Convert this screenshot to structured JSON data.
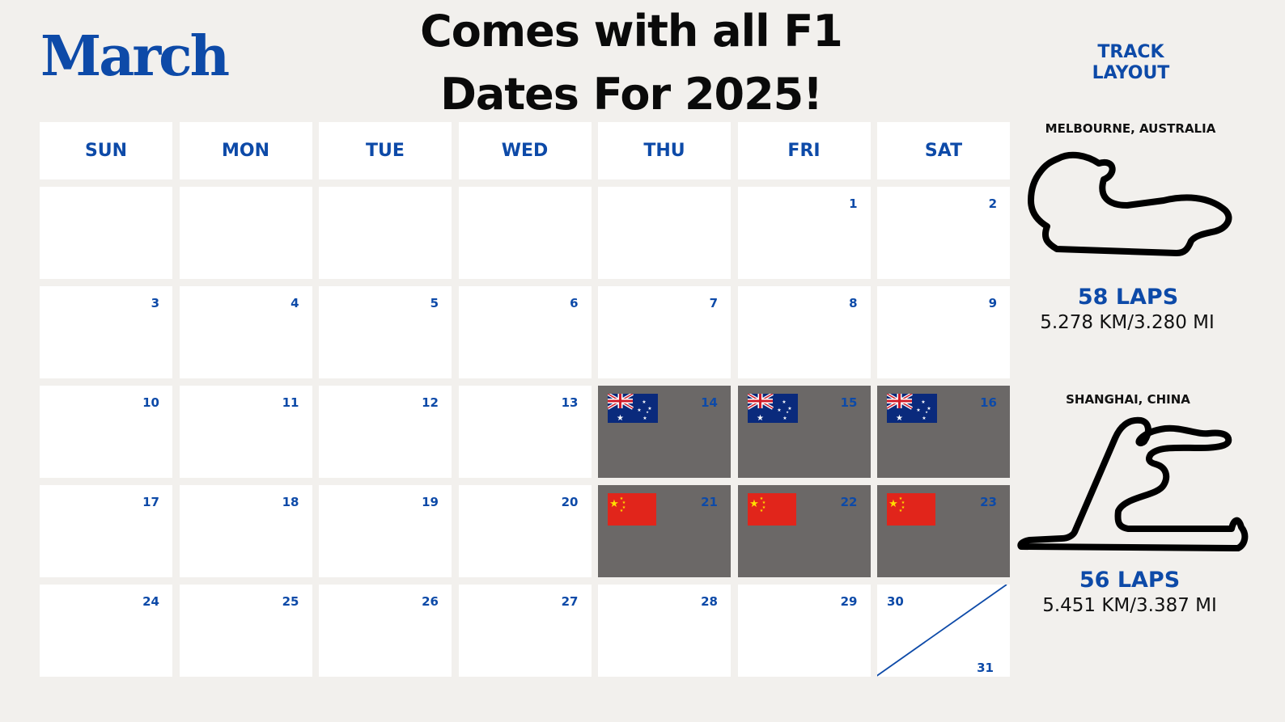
{
  "month": "March",
  "headline": {
    "line1": "Comes with all F1",
    "line2": "Dates For 2025!"
  },
  "weekdays": [
    "SUN",
    "MON",
    "TUE",
    "WED",
    "THU",
    "FRI",
    "SAT"
  ],
  "weeks": [
    [
      null,
      null,
      null,
      null,
      null,
      "1",
      "2"
    ],
    [
      "3",
      "4",
      "5",
      "6",
      "7",
      "8",
      "9"
    ],
    [
      "10",
      "11",
      "12",
      "13",
      "14",
      "15",
      "16"
    ],
    [
      "17",
      "18",
      "19",
      "20",
      "21",
      "22",
      "23"
    ],
    [
      "24",
      "25",
      "26",
      "27",
      "28",
      "29",
      "30"
    ]
  ],
  "last_cell_extra_day": "31",
  "race_weekends": [
    {
      "days": [
        "14",
        "15",
        "16"
      ],
      "flag": "australia-flag"
    },
    {
      "days": [
        "21",
        "22",
        "23"
      ],
      "flag": "china-flag"
    }
  ],
  "colors": {
    "accent": "#0d4aa8",
    "race_cell": "#6b6867",
    "background": "#f2f0ed"
  },
  "sidebar": {
    "title_line1": "TRACK",
    "title_line2": "LAYOUT",
    "tracks": [
      {
        "location": "MELBOURNE, AUSTRALIA",
        "laps": "58 LAPS",
        "distance": "5.278  KM/3.280 MI",
        "icon": "melbourne-track-icon"
      },
      {
        "location": "SHANGHAI, CHINA",
        "laps": "56 LAPS",
        "distance": "5.451 KM/3.387 MI",
        "icon": "shanghai-track-icon"
      }
    ]
  }
}
